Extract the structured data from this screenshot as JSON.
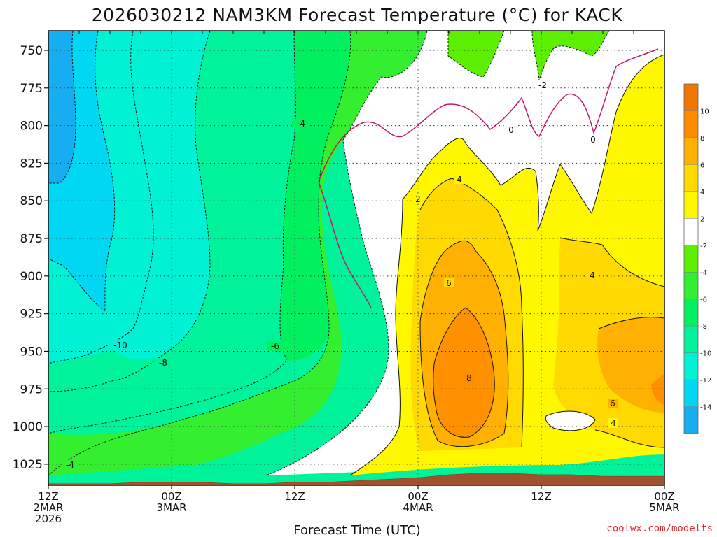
{
  "title": "2026030212 NAM3KM Forecast Temperature (°C) for KACK",
  "xlabel": "Forecast Time (UTC)",
  "credit": "coolwx.com/modelts",
  "chart_data": {
    "type": "heatmap",
    "title": "2026030212 NAM3KM Forecast Temperature (°C) for KACK",
    "xlabel": "Forecast Time (UTC)",
    "ylabel": "",
    "y_ticks": [
      750,
      775,
      800,
      825,
      850,
      875,
      900,
      925,
      950,
      975,
      1000,
      1025
    ],
    "x_ticks": [
      {
        "hour": 0,
        "lines": [
          "12Z",
          "2MAR",
          "2026"
        ]
      },
      {
        "hour": 12,
        "lines": [
          "00Z",
          "3MAR"
        ]
      },
      {
        "hour": 24,
        "lines": [
          "12Z"
        ]
      },
      {
        "hour": 36,
        "lines": [
          "00Z",
          "4MAR"
        ]
      },
      {
        "hour": 48,
        "lines": [
          "12Z"
        ]
      },
      {
        "hour": 60,
        "lines": [
          "00Z",
          "5MAR"
        ]
      }
    ],
    "x_range_hours": [
      0,
      60
    ],
    "y_range_hpa": [
      737,
      1039
    ],
    "ground_pressure_hpa": [
      1038,
      1038,
      1038,
      1037,
      1037,
      1037,
      1038,
      1038,
      1037,
      1037,
      1036,
      1035,
      1034,
      1032,
      1031,
      1031,
      1032,
      1032,
      1033,
      1033,
      1033
    ],
    "colorbar": {
      "levels": [
        -14,
        -12,
        -10,
        -8,
        -6,
        -4,
        -2,
        2,
        4,
        6,
        8,
        10
      ],
      "colors": [
        "#16aef0",
        "#00d7f3",
        "#00f1d4",
        "#00f39a",
        "#00f060",
        "#34ee30",
        "#5cf000",
        "#ffffff",
        "#fff700",
        "#ffd900",
        "#ffb000",
        "#ff8c00",
        "#f07800"
      ]
    },
    "contour_labels": [
      "-4",
      "-2",
      "0",
      "0",
      "2",
      "4",
      "-10",
      "-8",
      "-6",
      "6",
      "8",
      "6",
      "4",
      "4",
      "-4"
    ]
  }
}
